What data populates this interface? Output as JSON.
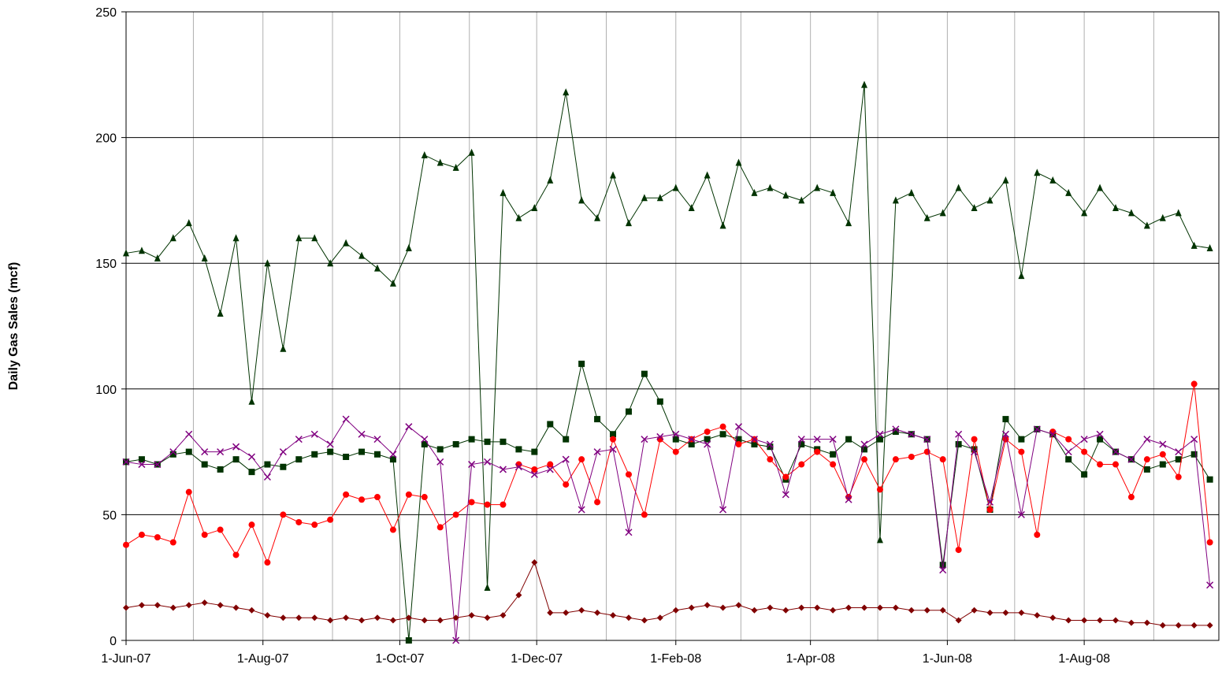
{
  "chart_data": {
    "type": "line",
    "y_label": "Daily Gas Sales (mcf)",
    "xlim": [
      "2007-06-01",
      "2008-09-30"
    ],
    "xticks": [
      {
        "value": "2007-06-01",
        "label": "1-Jun-07"
      },
      {
        "value": "2007-08-01",
        "label": "1-Aug-07"
      },
      {
        "value": "2007-10-01",
        "label": "1-Oct-07"
      },
      {
        "value": "2007-12-01",
        "label": "1-Dec-07"
      },
      {
        "value": "2008-02-01",
        "label": "1-Feb-08"
      },
      {
        "value": "2008-04-01",
        "label": "1-Apr-08"
      },
      {
        "value": "2008-06-01",
        "label": "1-Jun-08"
      },
      {
        "value": "2008-08-01",
        "label": "1-Aug-08"
      }
    ],
    "xgrid": [
      "2007-07-01",
      "2007-08-01",
      "2007-09-01",
      "2007-10-01",
      "2007-11-01",
      "2007-12-01",
      "2008-01-01",
      "2008-02-01",
      "2008-03-01",
      "2008-04-01",
      "2008-05-01",
      "2008-06-01",
      "2008-07-01",
      "2008-08-01",
      "2008-09-01"
    ],
    "ylim": [
      0,
      250
    ],
    "yticks": [
      0,
      50,
      100,
      150,
      200,
      250
    ],
    "grid": true,
    "x": [
      "2007-06-01",
      "2007-06-08",
      "2007-06-15",
      "2007-06-22",
      "2007-06-29",
      "2007-07-06",
      "2007-07-13",
      "2007-07-20",
      "2007-07-27",
      "2007-08-03",
      "2007-08-10",
      "2007-08-17",
      "2007-08-24",
      "2007-08-31",
      "2007-09-07",
      "2007-09-14",
      "2007-09-21",
      "2007-09-28",
      "2007-10-05",
      "2007-10-12",
      "2007-10-19",
      "2007-10-26",
      "2007-11-02",
      "2007-11-09",
      "2007-11-16",
      "2007-11-23",
      "2007-11-30",
      "2007-12-07",
      "2007-12-14",
      "2007-12-21",
      "2007-12-28",
      "2008-01-04",
      "2008-01-11",
      "2008-01-18",
      "2008-01-25",
      "2008-02-01",
      "2008-02-08",
      "2008-02-15",
      "2008-02-22",
      "2008-02-29",
      "2008-03-07",
      "2008-03-14",
      "2008-03-21",
      "2008-03-28",
      "2008-04-04",
      "2008-04-11",
      "2008-04-18",
      "2008-04-25",
      "2008-05-02",
      "2008-05-09",
      "2008-05-16",
      "2008-05-23",
      "2008-05-30",
      "2008-06-06",
      "2008-06-13",
      "2008-06-20",
      "2008-06-27",
      "2008-07-04",
      "2008-07-11",
      "2008-07-18",
      "2008-07-25",
      "2008-08-01",
      "2008-08-08",
      "2008-08-15",
      "2008-08-22",
      "2008-08-29",
      "2008-09-05",
      "2008-09-12",
      "2008-09-19",
      "2008-09-26"
    ],
    "series": [
      {
        "color": "#003300",
        "marker": "triangle",
        "values": [
          154,
          155,
          152,
          160,
          166,
          152,
          130,
          160,
          95,
          150,
          116,
          160,
          160,
          150,
          158,
          153,
          148,
          142,
          156,
          193,
          190,
          188,
          194,
          21,
          178,
          168,
          172,
          183,
          218,
          175,
          168,
          185,
          166,
          176,
          176,
          180,
          172,
          185,
          165,
          190,
          178,
          180,
          177,
          175,
          180,
          178,
          166,
          221,
          40,
          175,
          178,
          168,
          170,
          180,
          172,
          175,
          183,
          145,
          186,
          183,
          178,
          170,
          180,
          172,
          170,
          165,
          168,
          170,
          157,
          156
        ]
      },
      {
        "color": "#003300",
        "marker": "square",
        "values": [
          71,
          72,
          70,
          74,
          75,
          70,
          68,
          72,
          67,
          70,
          69,
          72,
          74,
          75,
          73,
          75,
          74,
          72,
          0,
          78,
          76,
          78,
          80,
          79,
          79,
          76,
          75,
          86,
          80,
          110,
          88,
          82,
          91,
          106,
          95,
          80,
          78,
          80,
          82,
          80,
          78,
          77,
          64,
          78,
          76,
          74,
          80,
          76,
          80,
          83,
          82,
          80,
          30,
          78,
          76,
          52,
          88,
          80,
          84,
          82,
          72,
          66,
          80,
          75,
          72,
          68,
          70,
          72,
          74,
          64
        ]
      },
      {
        "color": "#ff0000",
        "marker": "circle",
        "values": [
          38,
          42,
          41,
          39,
          59,
          42,
          44,
          34,
          46,
          31,
          50,
          47,
          46,
          48,
          58,
          56,
          57,
          44,
          58,
          57,
          45,
          50,
          55,
          54,
          54,
          70,
          68,
          70,
          62,
          72,
          55,
          80,
          66,
          50,
          80,
          75,
          80,
          83,
          85,
          78,
          80,
          72,
          65,
          70,
          75,
          70,
          57,
          72,
          60,
          72,
          73,
          75,
          72,
          36,
          80,
          52,
          80,
          75,
          42,
          83,
          80,
          75,
          70,
          70,
          57,
          72,
          74,
          65,
          102,
          39
        ]
      },
      {
        "color": "#800080",
        "marker": "x",
        "values": [
          71,
          70,
          70,
          75,
          82,
          75,
          75,
          77,
          73,
          65,
          75,
          80,
          82,
          78,
          88,
          82,
          80,
          74,
          85,
          80,
          71,
          0,
          70,
          71,
          68,
          69,
          66,
          68,
          72,
          52,
          75,
          76,
          43,
          80,
          81,
          82,
          80,
          78,
          52,
          85,
          80,
          78,
          58,
          80,
          80,
          80,
          56,
          78,
          82,
          84,
          82,
          80,
          28,
          82,
          75,
          55,
          82,
          50,
          84,
          82,
          75,
          80,
          82,
          75,
          72,
          80,
          78,
          75,
          80,
          22
        ]
      },
      {
        "color": "#800000",
        "marker": "diamond",
        "values": [
          13,
          14,
          14,
          13,
          14,
          15,
          14,
          13,
          12,
          10,
          9,
          9,
          9,
          8,
          9,
          8,
          9,
          8,
          9,
          8,
          8,
          9,
          10,
          9,
          10,
          18,
          31,
          11,
          11,
          12,
          11,
          10,
          9,
          8,
          9,
          12,
          13,
          14,
          13,
          14,
          12,
          13,
          12,
          13,
          13,
          12,
          13,
          13,
          13,
          13,
          12,
          12,
          12,
          8,
          12,
          11,
          11,
          11,
          10,
          9,
          8,
          8,
          8,
          8,
          7,
          7,
          6,
          6,
          6,
          6
        ]
      }
    ]
  }
}
